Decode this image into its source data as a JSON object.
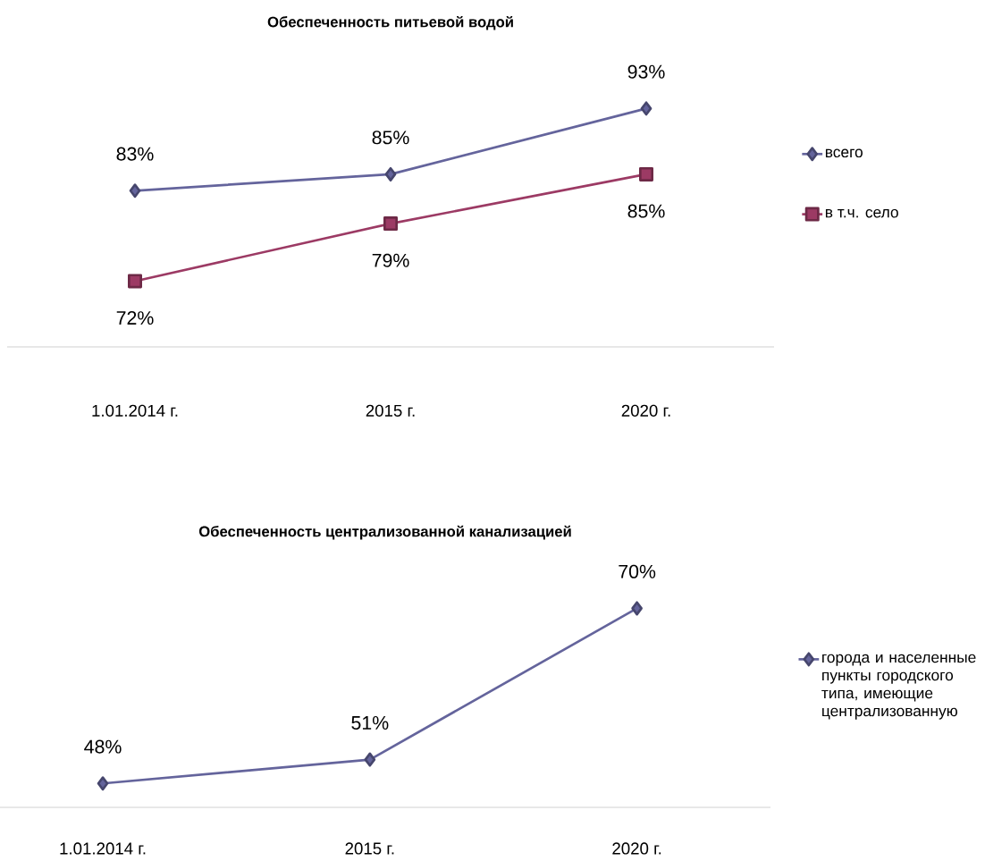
{
  "chart_data": [
    {
      "type": "line",
      "title": "Обеспеченность питьевой водой",
      "categories": [
        "1.01.2014 г.",
        "2015 г.",
        "2020 г."
      ],
      "tick_labels": "x",
      "legend": "right",
      "grid": false,
      "series": [
        {
          "name": "всего",
          "color": "#64649c",
          "marker": "diamond",
          "values": [
            83,
            85,
            93
          ],
          "value_labels": [
            "83%",
            "85%",
            "93%"
          ]
        },
        {
          "name": "в т.ч. село",
          "color": "#9c3a64",
          "marker": "square",
          "values": [
            72,
            79,
            85
          ],
          "value_labels": [
            "72%",
            "79%",
            "85%"
          ]
        }
      ]
    },
    {
      "type": "line",
      "title": "Обеспеченность централизованной канализацией",
      "categories": [
        "1.01.2014 г.",
        "2015 г.",
        "2020 г."
      ],
      "tick_labels": "x",
      "legend": "right",
      "grid": false,
      "series": [
        {
          "name": "города и населенные пункты городского типа, имеющие централизованную",
          "color": "#64649c",
          "marker": "diamond",
          "values": [
            48,
            51,
            70
          ],
          "value_labels": [
            "48%",
            "51%",
            "70%"
          ]
        }
      ]
    }
  ]
}
